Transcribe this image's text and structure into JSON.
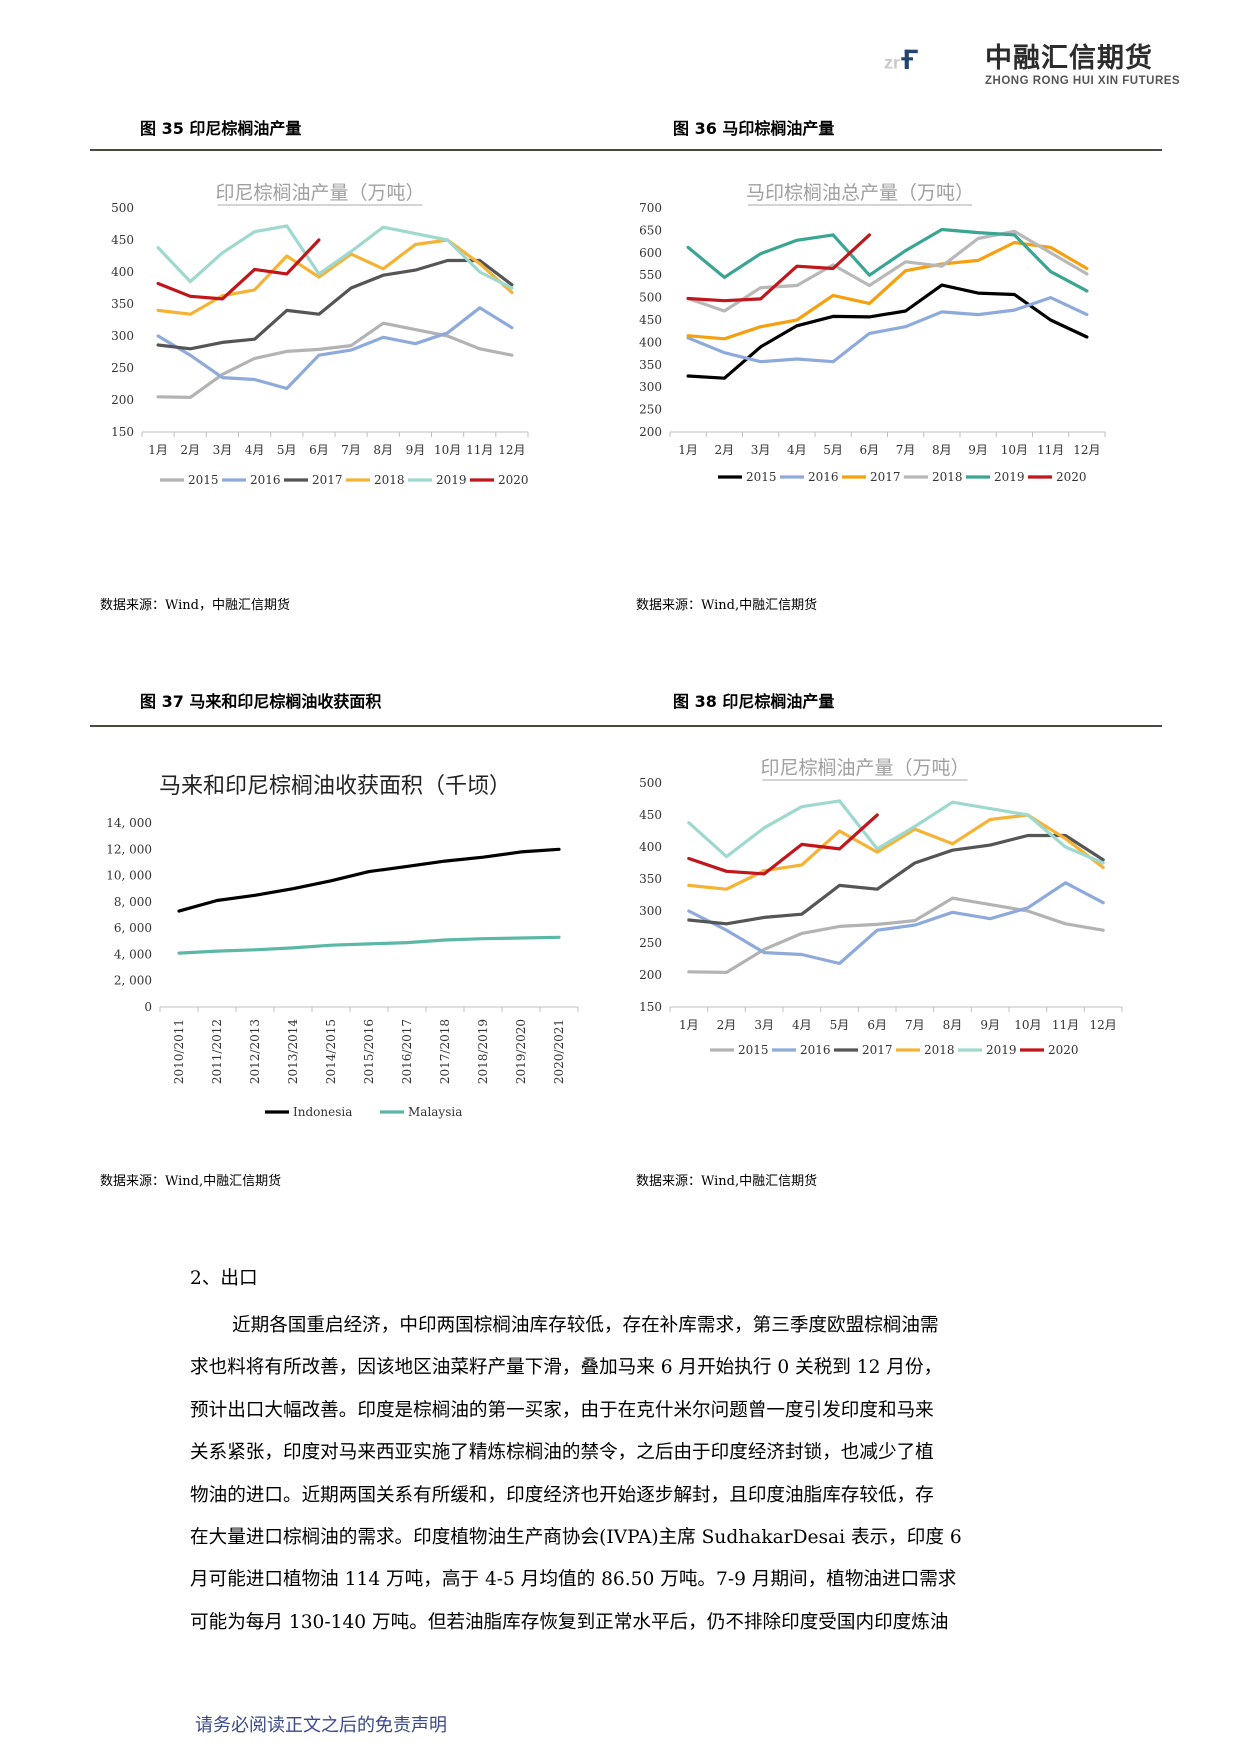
{
  "header": {
    "logo_mark": "znf",
    "company_cn": "中融汇信期货",
    "company_en": "ZHONG RONG HUI XIN FUTURES"
  },
  "figures": [
    {
      "title": "图 35  印尼棕榈油产量",
      "source": "数据来源：Wind，中融汇信期货"
    },
    {
      "title": "图 36  马印棕榈油产量",
      "source": "数据来源：Wind,中融汇信期货"
    },
    {
      "title": "图 37 马来和印尼棕榈油收获面积",
      "source": "数据来源：Wind,中融汇信期货"
    },
    {
      "title": "图 38  印尼棕榈油产量",
      "source": "数据来源：Wind,中融汇信期货"
    }
  ],
  "chart_data": [
    {
      "type": "line",
      "title": "印尼棕榈油产量（万吨）",
      "categories": [
        "1月",
        "2月",
        "3月",
        "4月",
        "5月",
        "6月",
        "7月",
        "8月",
        "9月",
        "10月",
        "11月",
        "12月"
      ],
      "ylim": [
        150,
        500
      ],
      "yticks": [
        150,
        200,
        250,
        300,
        350,
        400,
        450,
        500
      ],
      "legend": "bottom",
      "series": [
        {
          "name": "2015",
          "color": "#b3b3b3",
          "values": [
            205,
            204,
            240,
            265,
            276,
            279,
            285,
            320,
            310,
            300,
            280,
            270
          ]
        },
        {
          "name": "2016",
          "color": "#8eaadb",
          "values": [
            300,
            270,
            235,
            232,
            218,
            270,
            278,
            298,
            288,
            305,
            344,
            313
          ]
        },
        {
          "name": "2017",
          "color": "#555555",
          "values": [
            286,
            280,
            290,
            295,
            340,
            334,
            375,
            395,
            403,
            418,
            418,
            380
          ]
        },
        {
          "name": "2018",
          "color": "#f5b335",
          "values": [
            340,
            334,
            363,
            372,
            425,
            392,
            428,
            405,
            443,
            450,
            413,
            368
          ]
        },
        {
          "name": "2019",
          "color": "#9ed8cf",
          "values": [
            438,
            385,
            430,
            463,
            472,
            397,
            432,
            470,
            460,
            450,
            400,
            375
          ]
        },
        {
          "name": "2020",
          "color": "#c0161c",
          "values": [
            382,
            362,
            358,
            404,
            397,
            450,
            null,
            null,
            null,
            null,
            null,
            null
          ]
        }
      ]
    },
    {
      "type": "line",
      "title": "马印棕榈油总产量（万吨）",
      "categories": [
        "1月",
        "2月",
        "3月",
        "4月",
        "5月",
        "6月",
        "7月",
        "8月",
        "9月",
        "10月",
        "11月",
        "12月"
      ],
      "ylim": [
        200,
        700
      ],
      "yticks": [
        200,
        250,
        300,
        350,
        400,
        450,
        500,
        550,
        600,
        650,
        700
      ],
      "legend": "bottom",
      "series": [
        {
          "name": "2015",
          "color": "#000000",
          "values": [
            325,
            320,
            390,
            437,
            458,
            457,
            470,
            528,
            510,
            507,
            450,
            412
          ]
        },
        {
          "name": "2016",
          "color": "#8eaadb",
          "values": [
            410,
            377,
            357,
            363,
            357,
            420,
            435,
            468,
            462,
            472,
            500,
            462
          ]
        },
        {
          "name": "2017",
          "color": "#f5a10f",
          "values": [
            415,
            408,
            435,
            450,
            505,
            487,
            560,
            575,
            583,
            623,
            612,
            565
          ]
        },
        {
          "name": "2018",
          "color": "#b8b8b8",
          "values": [
            498,
            470,
            522,
            527,
            573,
            527,
            580,
            570,
            632,
            648,
            600,
            553
          ]
        },
        {
          "name": "2019",
          "color": "#3aa592",
          "values": [
            612,
            545,
            598,
            628,
            640,
            550,
            605,
            652,
            645,
            640,
            558,
            515
          ]
        },
        {
          "name": "2020",
          "color": "#c0161c",
          "values": [
            498,
            493,
            497,
            570,
            565,
            640,
            null,
            null,
            null,
            null,
            null,
            null
          ]
        }
      ]
    },
    {
      "type": "line",
      "title": "马来和印尼棕榈油收获面积（千顷）",
      "categories": [
        "2010/2011",
        "2011/2012",
        "2012/2013",
        "2013/2014",
        "2014/2015",
        "2015/2016",
        "2016/2017",
        "2017/2018",
        "2018/2019",
        "2019/2020",
        "2020/2021"
      ],
      "ylim": [
        0,
        14000
      ],
      "yticks": [
        0,
        2000,
        4000,
        6000,
        8000,
        10000,
        12000,
        14000
      ],
      "ytick_labels": [
        "0",
        "2, 000",
        "4, 000",
        "6, 000",
        "8, 000",
        "10, 000",
        "12, 000",
        "14, 000"
      ],
      "legend": "bottom",
      "series": [
        {
          "name": "Indonesia",
          "color": "#000000",
          "values": [
            7300,
            8100,
            8500,
            9000,
            9600,
            10300,
            10700,
            11100,
            11400,
            11800,
            12000
          ]
        },
        {
          "name": "Malaysia",
          "color": "#5cb8a6",
          "values": [
            4100,
            4250,
            4350,
            4500,
            4700,
            4800,
            4900,
            5100,
            5200,
            5250,
            5300
          ]
        }
      ]
    },
    {
      "type": "line",
      "title": "印尼棕榈油产量（万吨）",
      "categories": [
        "1月",
        "2月",
        "3月",
        "4月",
        "5月",
        "6月",
        "7月",
        "8月",
        "9月",
        "10月",
        "11月",
        "12月"
      ],
      "ylim": [
        150,
        500
      ],
      "yticks": [
        150,
        200,
        250,
        300,
        350,
        400,
        450,
        500
      ],
      "legend": "bottom",
      "series": [
        {
          "name": "2015",
          "color": "#b3b3b3",
          "values": [
            205,
            204,
            240,
            265,
            276,
            279,
            285,
            320,
            310,
            300,
            280,
            270
          ]
        },
        {
          "name": "2016",
          "color": "#8eaadb",
          "values": [
            300,
            270,
            235,
            232,
            218,
            270,
            278,
            298,
            288,
            305,
            344,
            313
          ]
        },
        {
          "name": "2017",
          "color": "#555555",
          "values": [
            286,
            280,
            290,
            295,
            340,
            334,
            375,
            395,
            403,
            418,
            418,
            380
          ]
        },
        {
          "name": "2018",
          "color": "#f5b335",
          "values": [
            340,
            334,
            363,
            372,
            425,
            392,
            428,
            405,
            443,
            450,
            413,
            368
          ]
        },
        {
          "name": "2019",
          "color": "#9ed8cf",
          "values": [
            438,
            385,
            430,
            463,
            472,
            397,
            432,
            470,
            460,
            450,
            400,
            375
          ]
        },
        {
          "name": "2020",
          "color": "#c0161c",
          "values": [
            382,
            362,
            358,
            404,
            397,
            450,
            null,
            null,
            null,
            null,
            null,
            null
          ]
        }
      ]
    }
  ],
  "section": {
    "heading": "2、出口",
    "lines": [
      "近期各国重启经济，中印两国棕榈油库存较低，存在补库需求，第三季度欧盟棕榈油需",
      "求也料将有所改善，因该地区油菜籽产量下滑，叠加马来 6 月开始执行 0 关税到 12 月份，",
      "预计出口大幅改善。印度是棕榈油的第一买家，由于在克什米尔问题曾一度引发印度和马来",
      "关系紧张，印度对马来西亚实施了精炼棕榈油的禁令，之后由于印度经济封锁，也减少了植",
      "物油的进口。近期两国关系有所缓和，印度经济也开始逐步解封，且印度油脂库存较低，存",
      "在大量进口棕榈油的需求。印度植物油生产商协会(IVPA)主席 SudhakarDesai 表示，印度 6",
      "月可能进口植物油 114 万吨，高于 4-5 月均值的 86.50 万吨。7-9 月期间，植物油进口需求",
      "可能为每月 130-140 万吨。但若油脂库存恢复到正常水平后，仍不排除印度受国内印度炼油"
    ]
  },
  "footer": "请务必阅读正文之后的免责声明"
}
